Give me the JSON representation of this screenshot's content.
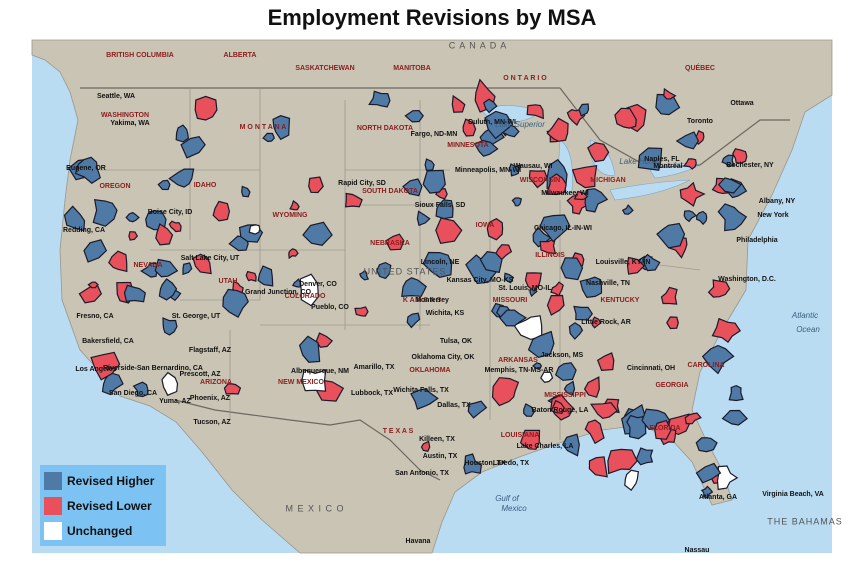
{
  "title": "Employment Revisions by MSA",
  "legend": [
    {
      "label": "Revised Higher",
      "color": "#4f7aa6"
    },
    {
      "label": "Revised Lower",
      "color": "#e8505b"
    },
    {
      "label": "Unchanged",
      "color": "#ffffff"
    }
  ],
  "labels": {
    "countries": [
      "C A N A D A",
      "UNITED STATES",
      "M E X I C O",
      "THE BAHAMAS"
    ],
    "regions": [
      "BRITISH COLUMBIA",
      "ALBERTA",
      "SASKATCHEWAN",
      "MANITOBA",
      "O N T A R I O",
      "QUÉBEC",
      "WASHINGTON",
      "OREGON",
      "NEVADA",
      "UTAH",
      "ARIZONA",
      "IDAHO",
      "M O N T A N A",
      "WYOMING",
      "COLORADO",
      "NEW MEXICO",
      "NORTH DAKOTA",
      "SOUTH DAKOTA",
      "NEBRASKA",
      "K A N S A S",
      "OKLAHOMA",
      "T E X A S",
      "MINNESOTA",
      "IOWA",
      "MISSOURI",
      "ARKANSAS",
      "LOUISIANA",
      "MISSISSIPPI",
      "ILLINOIS",
      "WISCONSIN",
      "MICHIGAN",
      "KENTUCKY",
      "GEORGIA",
      "FLORIDA",
      "CAROLINA"
    ],
    "waters": [
      "Atlantic",
      "Ocean",
      "Gulf of",
      "Mexico",
      "Lake Superior",
      "Lake Huron"
    ],
    "cities": [
      "Seattle, WA",
      "Yakima, WA",
      "Eugene, OR",
      "Boise City, ID",
      "Redding, CA",
      "Salt Lake City, UT",
      "Grand Junction, CO",
      "Denver, CO",
      "Pueblo, CO",
      "Rapid City, SD",
      "Fargo, ND-MN",
      "Duluth, MN-WI",
      "Minneapolis, MN-WI",
      "Sioux Falls, SD",
      "Lincoln, NE",
      "Kansas City, MO-KS",
      "Wichita, KS",
      "St. Louis, MO-IL",
      "Chicago, IL-IN-WI",
      "Milwaukee, WI",
      "Wausau, WI",
      "Los Angeles",
      "Bakersfield, CA",
      "Fresno, CA",
      "Riverside-San Bernardino, CA",
      "San Diego, CA",
      "Yuma, AZ",
      "Phoenix, AZ",
      "Tucson, AZ",
      "Flagstaff, AZ",
      "Prescott, AZ",
      "St. George, UT",
      "Albuquerque, NM",
      "Amarillo, TX",
      "Lubbock, TX",
      "Oklahoma City, OK",
      "Tulsa, OK",
      "Dallas, TX",
      "Wichita Falls, TX",
      "Killeen, TX",
      "Austin, TX",
      "San Antonio, TX",
      "Houston, TX",
      "Laredo, TX",
      "Lake Charles, LA",
      "Baton Rouge, LA",
      "Jackson, MS",
      "Memphis, TN-MS-AR",
      "Little Rock, AR",
      "Nashville, TN",
      "Louisville, KY-IN",
      "Cincinnati, OH",
      "Atlanta, GA",
      "Naples, FL",
      "Toronto",
      "Ottawa",
      "Montréal",
      "Rochester, NY",
      "Albany, NY",
      "New York",
      "Philadelphia",
      "Washington, D.C.",
      "Virginia Beach, VA",
      "Nassau",
      "Havana",
      "Monterrey"
    ]
  }
}
